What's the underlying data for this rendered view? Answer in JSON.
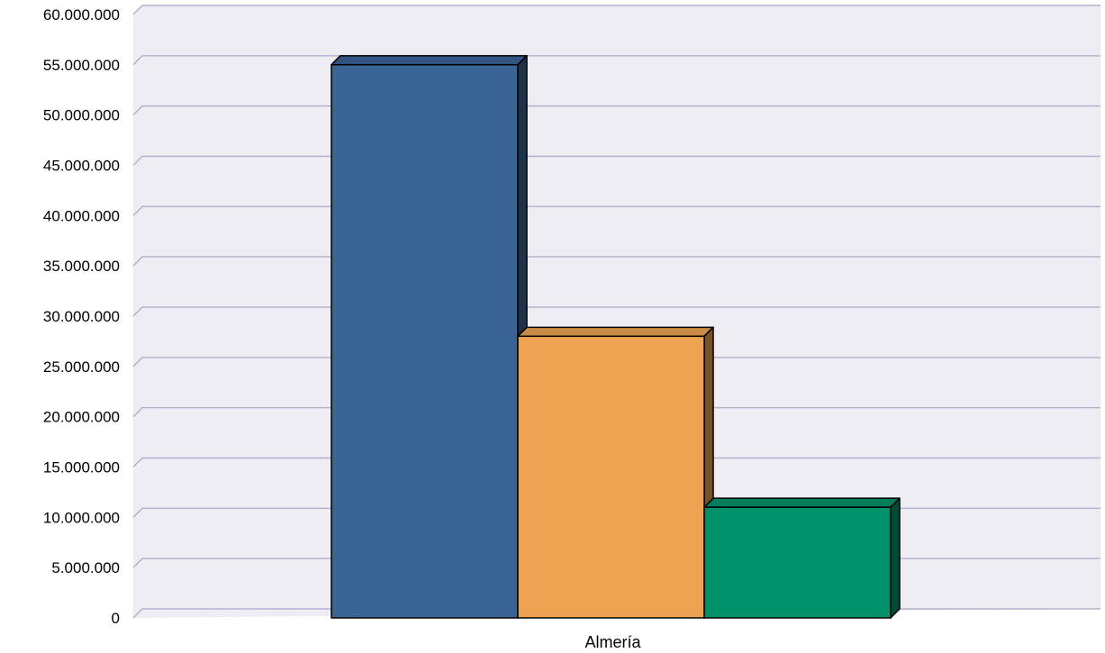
{
  "chart_data": {
    "type": "bar",
    "categories": [
      "Almería"
    ],
    "series": [
      {
        "values": [
          55000000
        ],
        "color": "#3a6496"
      },
      {
        "values": [
          28000000
        ],
        "color": "#eea352"
      },
      {
        "values": [
          11000000
        ],
        "color": "#00936b"
      }
    ],
    "ylim": [
      0,
      60000000
    ],
    "yticks": [
      "0",
      "5.000.000",
      "10.000.000",
      "15.000.000",
      "20.000.000",
      "25.000.000",
      "30.000.000",
      "35.000.000",
      "40.000.000",
      "45.000.000",
      "50.000.000",
      "55.000.000",
      "60.000.000"
    ],
    "grid": true,
    "legend": "none",
    "style": "3d",
    "colors": {
      "plot_background": "#efedf4",
      "gridline": "#b6b2cc"
    }
  }
}
